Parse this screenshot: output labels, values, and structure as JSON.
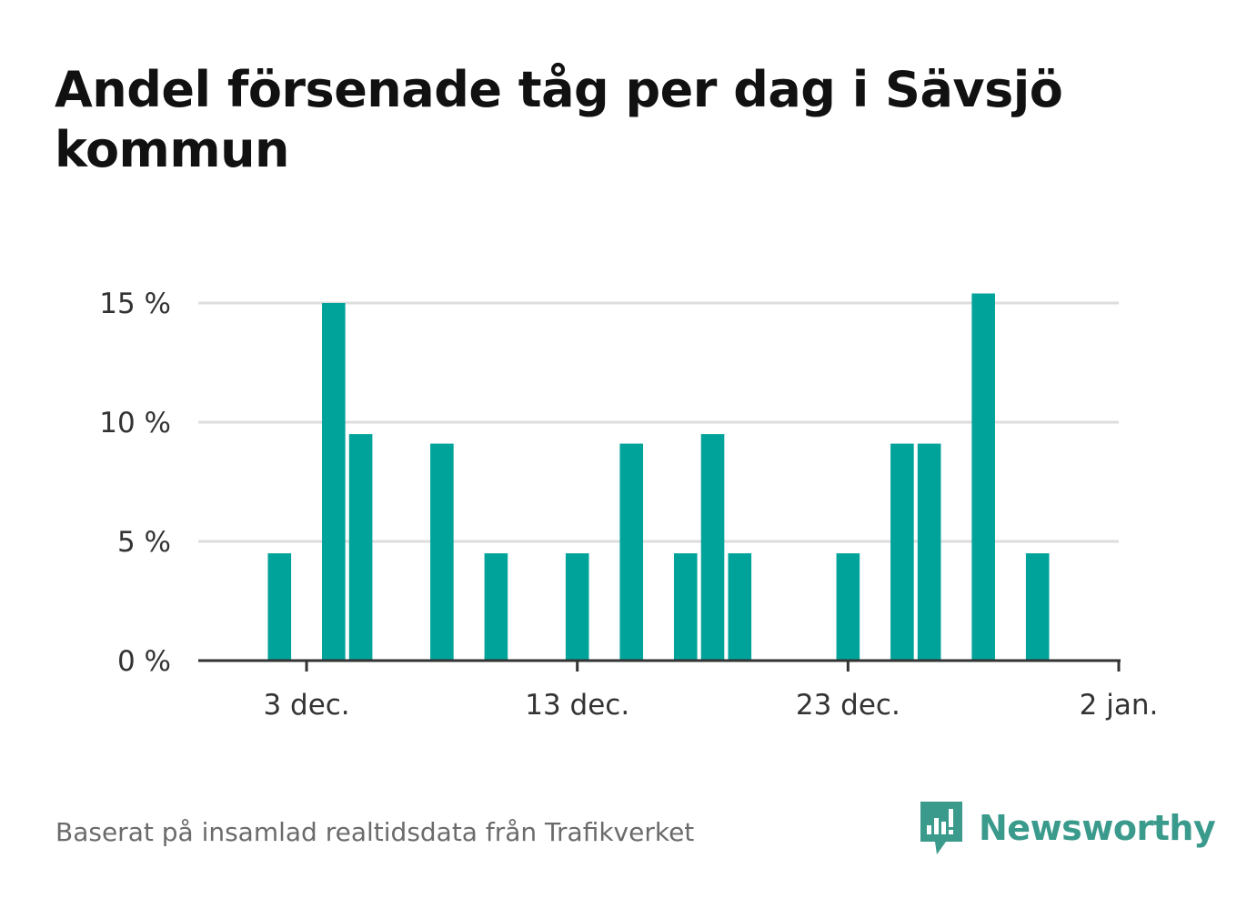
{
  "title": "Andel försenade tåg per dag i Sävsjö kommun",
  "source": "Baserat på insamlad realtidsdata från Trafikverket",
  "brand": {
    "name": "Newsworthy",
    "icon": "newsworthy-logo-icon",
    "color": "#3a9a8c"
  },
  "chart_data": {
    "type": "bar",
    "bar_color": "#00a39a",
    "grid": true,
    "ylim": [
      0,
      15
    ],
    "yticks": [
      0,
      5,
      10,
      15
    ],
    "ytick_labels": [
      "0 %",
      "5 %",
      "10 %",
      "15 %"
    ],
    "xlim": [
      "2023-11-29",
      "2024-01-02"
    ],
    "xticks": [
      "2023-12-03",
      "2023-12-13",
      "2023-12-23",
      "2024-01-02"
    ],
    "xtick_labels": [
      "3 dec.",
      "13 dec.",
      "23 dec.",
      "2 jan."
    ],
    "x": [
      "2023-12-02",
      "2023-12-04",
      "2023-12-05",
      "2023-12-08",
      "2023-12-10",
      "2023-12-13",
      "2023-12-15",
      "2023-12-17",
      "2023-12-18",
      "2023-12-19",
      "2023-12-23",
      "2023-12-25",
      "2023-12-26",
      "2023-12-28",
      "2023-12-30"
    ],
    "values": [
      4.5,
      15.0,
      9.5,
      9.1,
      4.5,
      4.5,
      9.1,
      4.5,
      9.5,
      4.5,
      4.5,
      9.1,
      9.1,
      15.4,
      4.5
    ]
  }
}
